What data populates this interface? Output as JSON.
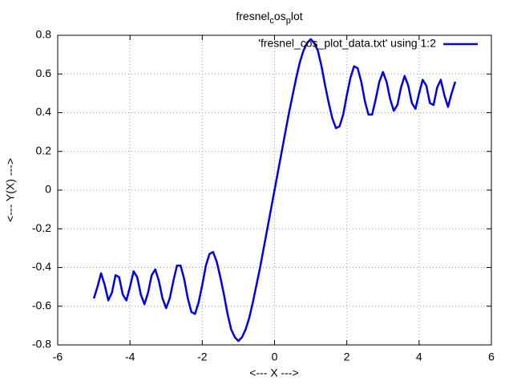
{
  "chart_data": {
    "type": "line",
    "title": [
      "fresnel",
      "c",
      "os",
      "p",
      "lot"
    ],
    "xlabel": "<--- X --->",
    "ylabel": "<--- Y(X) --->",
    "xlim": [
      -6,
      6
    ],
    "xticks": [
      -6,
      -4,
      -2,
      0,
      2,
      4,
      6
    ],
    "ylim": [
      -0.8,
      0.8
    ],
    "yticks": [
      -0.8,
      -0.6,
      -0.4,
      -0.2,
      0,
      0.2,
      0.4,
      0.6,
      0.8
    ],
    "grid": true,
    "legend": "top-right",
    "x": [
      -5,
      -4.9,
      -4.8,
      -4.7,
      -4.6,
      -4.5,
      -4.4,
      -4.3,
      -4.2,
      -4.1,
      -4,
      -3.9,
      -3.8,
      -3.7,
      -3.6,
      -3.5,
      -3.4,
      -3.3,
      -3.2,
      -3.1,
      -3,
      -2.9,
      -2.8,
      -2.7,
      -2.6,
      -2.5,
      -2.4,
      -2.3,
      -2.2,
      -2.1,
      -2,
      -1.9,
      -1.8,
      -1.7,
      -1.6,
      -1.5,
      -1.4,
      -1.3,
      -1.2,
      -1.1,
      -1,
      -0.9,
      -0.8,
      -0.7,
      -0.6,
      -0.5,
      -0.4,
      -0.3,
      -0.2,
      -0.1,
      0,
      0.1,
      0.2,
      0.3,
      0.4,
      0.5,
      0.6,
      0.7,
      0.8,
      0.9,
      1,
      1.1,
      1.2,
      1.3,
      1.4,
      1.5,
      1.6,
      1.7,
      1.8,
      1.9,
      2,
      2.1,
      2.2,
      2.3,
      2.4,
      2.5,
      2.6,
      2.7,
      2.8,
      2.9,
      3,
      3.1,
      3.2,
      3.3,
      3.4,
      3.5,
      3.6,
      3.7,
      3.8,
      3.9,
      4,
      4.1,
      4.2,
      4.3,
      4.4,
      4.5,
      4.6,
      4.7,
      4.8,
      4.9,
      5
    ],
    "series": [
      {
        "name": "'fresnel_cos_plot_data.txt' using 1:2",
        "color": "#0000e0",
        "values": [
          -0.56,
          -0.5,
          -0.43,
          -0.49,
          -0.57,
          -0.53,
          -0.44,
          -0.45,
          -0.54,
          -0.57,
          -0.5,
          -0.42,
          -0.45,
          -0.54,
          -0.59,
          -0.53,
          -0.44,
          -0.41,
          -0.47,
          -0.56,
          -0.61,
          -0.56,
          -0.47,
          -0.39,
          -0.39,
          -0.46,
          -0.56,
          -0.63,
          -0.64,
          -0.58,
          -0.49,
          -0.39,
          -0.33,
          -0.32,
          -0.37,
          -0.45,
          -0.54,
          -0.64,
          -0.72,
          -0.76,
          -0.78,
          -0.76,
          -0.72,
          -0.66,
          -0.58,
          -0.49,
          -0.4,
          -0.3,
          -0.2,
          -0.1,
          0,
          0.1,
          0.2,
          0.3,
          0.4,
          0.49,
          0.58,
          0.66,
          0.72,
          0.76,
          0.78,
          0.76,
          0.72,
          0.64,
          0.54,
          0.45,
          0.37,
          0.32,
          0.33,
          0.39,
          0.49,
          0.58,
          0.64,
          0.63,
          0.56,
          0.46,
          0.39,
          0.39,
          0.47,
          0.56,
          0.61,
          0.56,
          0.47,
          0.41,
          0.44,
          0.53,
          0.59,
          0.54,
          0.45,
          0.42,
          0.5,
          0.57,
          0.54,
          0.45,
          0.44,
          0.53,
          0.57,
          0.49,
          0.43,
          0.5,
          0.56
        ]
      }
    ]
  }
}
